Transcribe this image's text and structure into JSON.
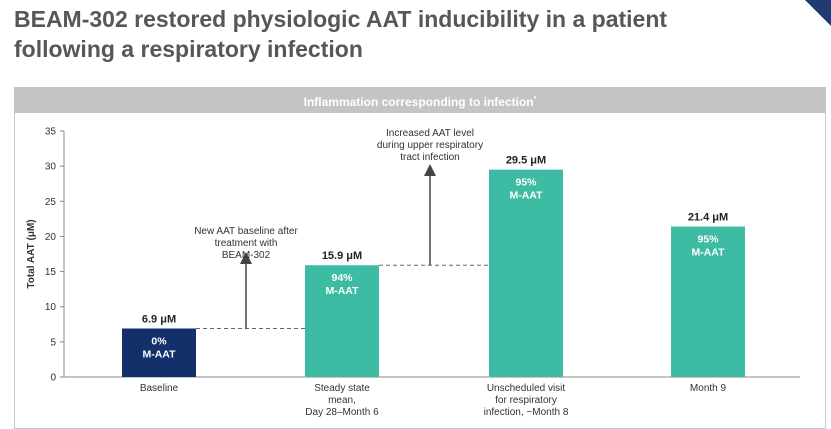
{
  "page": {
    "title_line1": "BEAM-302 restored physiologic AAT inducibility in a patient",
    "title_line2": "following a respiratory infection"
  },
  "chart_data": {
    "type": "bar",
    "panel_header": "Inflammation corresponding to infection",
    "panel_header_marker": "*",
    "ylabel": "Total AAT (μM)",
    "ylim": [
      0,
      35
    ],
    "yticks": [
      0,
      5,
      10,
      15,
      20,
      25,
      30,
      35
    ],
    "categories": [
      [
        "Baseline"
      ],
      [
        "Steady state",
        "mean,",
        "Day 28–Month 6"
      ],
      [
        "Unscheduled visit",
        "for respiratory",
        "infection, ~Month 8"
      ],
      [
        "Month 9"
      ]
    ],
    "values": [
      6.9,
      15.9,
      29.5,
      21.4
    ],
    "value_labels": [
      "6.9 μM",
      "15.9 μM",
      "29.5 μM",
      "21.4 μM"
    ],
    "bar_pct": [
      "0%",
      "94%",
      "95%",
      "95%"
    ],
    "bar_sublabel": "M-AAT",
    "bar_colors": [
      "#14306b",
      "#3dbba3",
      "#3dbba3",
      "#3dbba3"
    ],
    "annotations": [
      {
        "lines": [
          "New AAT baseline after",
          "treatment with",
          "BEAM-302"
        ],
        "from_value": 6.9,
        "to_value": 15.9
      },
      {
        "lines": [
          "Increased AAT level",
          "during upper respiratory",
          "tract infection"
        ],
        "from_value": 15.9,
        "to_value": 29.5
      }
    ],
    "grid": false,
    "legend": "none"
  }
}
